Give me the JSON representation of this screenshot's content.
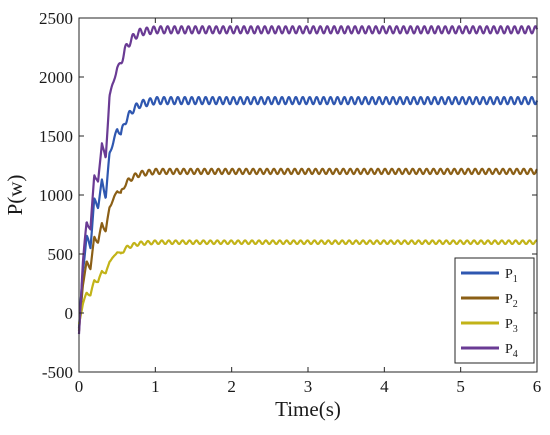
{
  "chart_data": {
    "type": "line",
    "xlabel": "Time(s)",
    "ylabel": "P(w)",
    "xlim": [
      0,
      6
    ],
    "ylim": [
      -500,
      2500
    ],
    "xticks": [
      "0",
      "1",
      "2",
      "3",
      "4",
      "5",
      "6"
    ],
    "yticks": [
      "-500",
      "0",
      "500",
      "1000",
      "1500",
      "2000",
      "2500"
    ],
    "grid": false,
    "legend_position": "bottom-right",
    "series": [
      {
        "name": "P1",
        "label_main": "P",
        "label_sub": "1",
        "color": "#2f57b0",
        "x": [
          0,
          0.05,
          0.1,
          0.15,
          0.2,
          0.25,
          0.3,
          0.35,
          0.4,
          0.45,
          0.5,
          0.55,
          0.6,
          0.7,
          0.8,
          1.0,
          1.5,
          2,
          3,
          4,
          5,
          6
        ],
        "y": [
          -130,
          350,
          650,
          560,
          960,
          900,
          1120,
          980,
          1350,
          1450,
          1560,
          1510,
          1620,
          1720,
          1770,
          1800,
          1800,
          1800,
          1800,
          1800,
          1800,
          1800
        ],
        "oscillation": 30
      },
      {
        "name": "P2",
        "label_main": "P",
        "label_sub": "2",
        "color": "#8b5f16",
        "x": [
          0,
          0.05,
          0.1,
          0.15,
          0.2,
          0.25,
          0.3,
          0.35,
          0.4,
          0.45,
          0.5,
          0.55,
          0.6,
          0.7,
          0.8,
          1.0,
          1.5,
          2,
          3,
          4,
          5,
          6
        ],
        "y": [
          -160,
          240,
          430,
          380,
          640,
          600,
          760,
          690,
          900,
          960,
          1040,
          1010,
          1090,
          1150,
          1180,
          1200,
          1200,
          1200,
          1200,
          1200,
          1200,
          1200
        ],
        "oscillation": 22
      },
      {
        "name": "P3",
        "label_main": "P",
        "label_sub": "3",
        "color": "#c2b318",
        "x": [
          0,
          0.05,
          0.1,
          0.15,
          0.2,
          0.25,
          0.3,
          0.35,
          0.4,
          0.45,
          0.5,
          0.55,
          0.6,
          0.7,
          0.8,
          1.0,
          1.5,
          2,
          3,
          4,
          5,
          6
        ],
        "y": [
          -100,
          80,
          170,
          150,
          280,
          260,
          360,
          330,
          440,
          470,
          520,
          500,
          545,
          575,
          590,
          600,
          600,
          600,
          600,
          600,
          600,
          600
        ],
        "oscillation": 15
      },
      {
        "name": "P4",
        "label_main": "P",
        "label_sub": "4",
        "color": "#6a3b94",
        "x": [
          0,
          0.05,
          0.1,
          0.15,
          0.2,
          0.25,
          0.3,
          0.35,
          0.4,
          0.45,
          0.5,
          0.55,
          0.6,
          0.7,
          0.8,
          1.0,
          1.5,
          2,
          3,
          4,
          5,
          6
        ],
        "y": [
          -180,
          420,
          780,
          700,
          1180,
          1100,
          1450,
          1300,
          1850,
          1950,
          2080,
          2120,
          2230,
          2330,
          2380,
          2400,
          2400,
          2400,
          2400,
          2400,
          2400,
          2400
        ],
        "oscillation": 30
      }
    ]
  }
}
